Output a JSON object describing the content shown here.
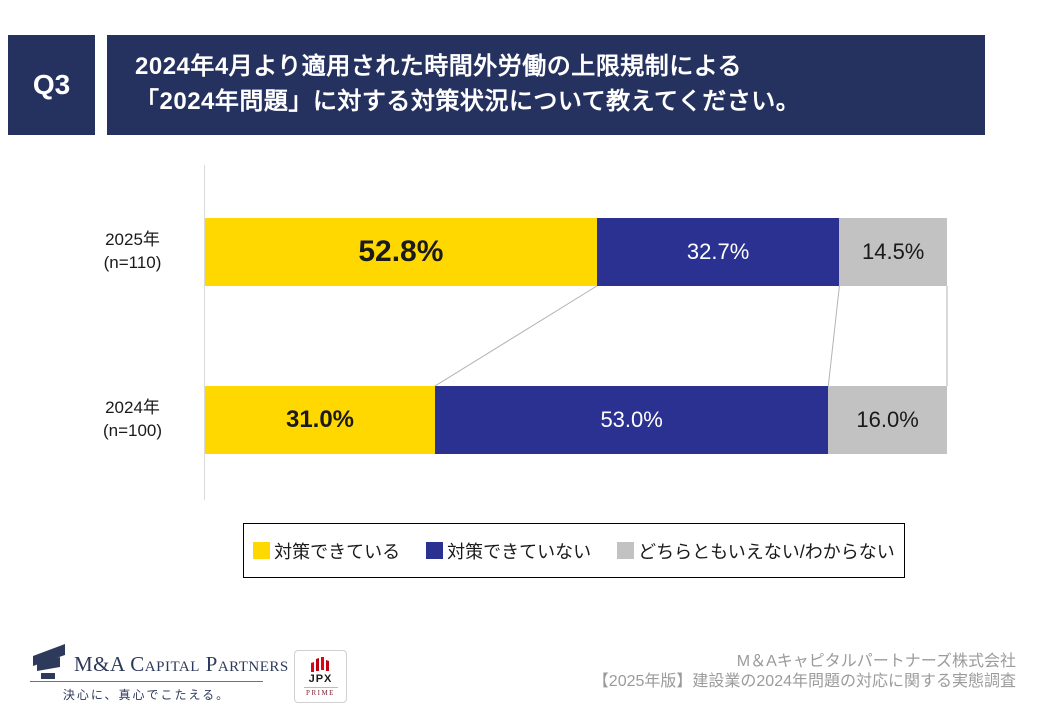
{
  "header": {
    "badge": "Q3",
    "title_line1": "2024年4月より適用された時間外労働の上限規制による",
    "title_line2": "「2024年問題」に対する対策状況について教えてください。"
  },
  "chart_data": {
    "type": "bar",
    "orientation": "horizontal",
    "stacked": true,
    "unit": "%",
    "categories": [
      "2025年",
      "2024年"
    ],
    "category_sublabels": [
      "(n=110)",
      "(n=100)"
    ],
    "sample_sizes": [
      110,
      100
    ],
    "series": [
      {
        "name": "対策できている",
        "color": "#FFD800",
        "values": [
          52.8,
          31.0
        ]
      },
      {
        "name": "対策できていない",
        "color": "#2B3190",
        "values": [
          32.7,
          53.0
        ]
      },
      {
        "name": "どちらともいえない/わからない",
        "color": "#C2C2C2",
        "values": [
          14.5,
          16.0
        ]
      }
    ],
    "xlim": [
      0,
      100
    ],
    "value_labels": [
      [
        "52.8%",
        "32.7%",
        "14.5%"
      ],
      [
        "31.0%",
        "53.0%",
        "16.0%"
      ]
    ],
    "legend_position": "bottom",
    "grid": false
  },
  "colors": {
    "header_navy": "#25315E",
    "bar_yellow": "#FFD800",
    "bar_navy": "#2B3190",
    "bar_gray": "#C2C2C2",
    "connector_gray": "#B3B3B3",
    "credit_gray": "#9B9B9B",
    "logo_navy": "#2E3A5C",
    "jpx_red": "#E60012"
  },
  "footer": {
    "logo_text": "M&A Capital Partners",
    "logo_tagline": "決心に、真心でこたえる。",
    "jpx_name": "JPX",
    "jpx_tier": "PRIME",
    "credit_line1": "M＆Aキャピタルパートナーズ株式会社",
    "credit_line2": "【2025年版】建設業の2024年問題の対応に関する実態調査"
  }
}
